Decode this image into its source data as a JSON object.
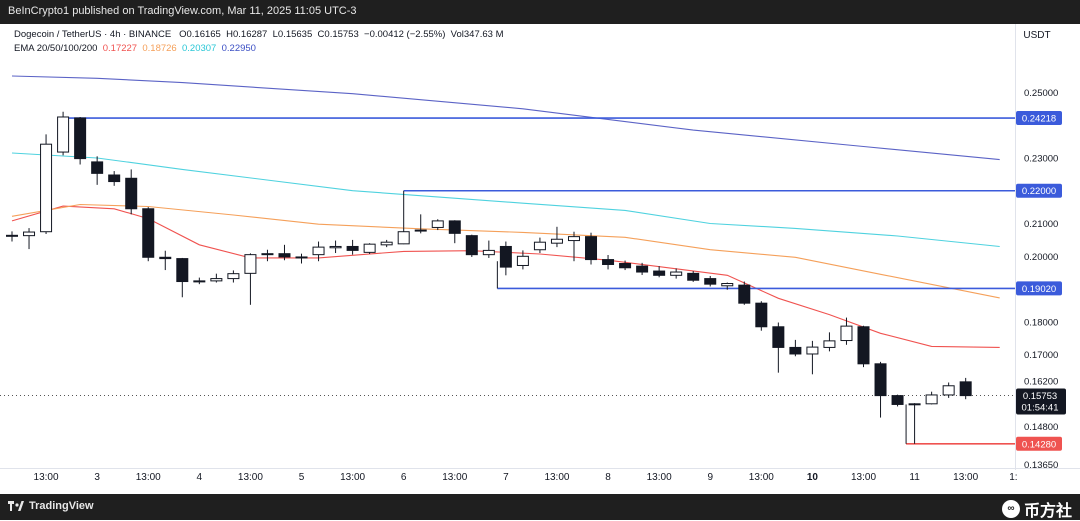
{
  "header": {
    "publish_line": "BeInCrypto1 published on TradingView.com, Mar 11, 2025 11:05 UTC-3"
  },
  "legend": {
    "symbol": "Dogecoin / TetherUS · 4h · BINANCE",
    "o_label": "O",
    "o_value": "0.16165",
    "h_label": "H",
    "h_value": "0.16287",
    "l_label": "L",
    "l_value": "0.15635",
    "c_label": "C",
    "c_value": "0.15753",
    "change": "−0.00412 (−2.55%)",
    "vol_label": "Vol",
    "vol_value": "347.63 M",
    "ema_label": "EMA 20/50/100/200",
    "ema_values": [
      "0.17227",
      "0.18726",
      "0.20307",
      "0.22950"
    ]
  },
  "footer": {
    "brand": "TradingView",
    "watermark": "币方社"
  },
  "chart_data": {
    "type": "candlestick",
    "currency": "USDT",
    "ylim": [
      0.1345,
      0.2608
    ],
    "y_ticks": [
      {
        "v": 0.25,
        "label": "0.25000"
      },
      {
        "v": 0.23,
        "label": "0.23000"
      },
      {
        "v": 0.21,
        "label": "0.21000"
      },
      {
        "v": 0.2,
        "label": "0.20000"
      },
      {
        "v": 0.18,
        "label": "0.18000"
      },
      {
        "v": 0.17,
        "label": "0.17000"
      },
      {
        "v": 0.162,
        "label": "0.16200"
      },
      {
        "v": 0.148,
        "label": "0.14800"
      },
      {
        "v": 0.1365,
        "label": "0.13650"
      }
    ],
    "x_ticks": [
      {
        "i": 2,
        "label": "13:00"
      },
      {
        "i": 5,
        "label": "3"
      },
      {
        "i": 8,
        "label": "13:00"
      },
      {
        "i": 11,
        "label": "4"
      },
      {
        "i": 14,
        "label": "13:00"
      },
      {
        "i": 17,
        "label": "5"
      },
      {
        "i": 20,
        "label": "13:00"
      },
      {
        "i": 23,
        "label": "6"
      },
      {
        "i": 26,
        "label": "13:00"
      },
      {
        "i": 29,
        "label": "7"
      },
      {
        "i": 32,
        "label": "13:00"
      },
      {
        "i": 35,
        "label": "8"
      },
      {
        "i": 38,
        "label": "13:00"
      },
      {
        "i": 41,
        "label": "9"
      },
      {
        "i": 44,
        "label": "13:00"
      },
      {
        "i": 47,
        "label": "10",
        "bold": true
      },
      {
        "i": 50,
        "label": "13:00"
      },
      {
        "i": 53,
        "label": "11"
      },
      {
        "i": 56,
        "label": "13:00"
      },
      {
        "i": 58.8,
        "label": "1:"
      }
    ],
    "candles": [
      {
        "o": 0.2064,
        "h": 0.2076,
        "l": 0.2045,
        "c": 0.2062
      },
      {
        "o": 0.2063,
        "h": 0.2086,
        "l": 0.2022,
        "c": 0.2074
      },
      {
        "o": 0.2075,
        "h": 0.2372,
        "l": 0.2068,
        "c": 0.2342
      },
      {
        "o": 0.2318,
        "h": 0.2441,
        "l": 0.2308,
        "c": 0.2425
      },
      {
        "o": 0.2422,
        "h": 0.2425,
        "l": 0.228,
        "c": 0.2298
      },
      {
        "o": 0.2288,
        "h": 0.2305,
        "l": 0.2218,
        "c": 0.2253
      },
      {
        "o": 0.2248,
        "h": 0.226,
        "l": 0.2215,
        "c": 0.2228
      },
      {
        "o": 0.2238,
        "h": 0.2265,
        "l": 0.2128,
        "c": 0.2145
      },
      {
        "o": 0.2145,
        "h": 0.215,
        "l": 0.1985,
        "c": 0.1997
      },
      {
        "o": 0.1997,
        "h": 0.2017,
        "l": 0.1958,
        "c": 0.1993
      },
      {
        "o": 0.1993,
        "h": 0.1995,
        "l": 0.1875,
        "c": 0.1923
      },
      {
        "o": 0.1922,
        "h": 0.1935,
        "l": 0.1915,
        "c": 0.1925
      },
      {
        "o": 0.1925,
        "h": 0.1947,
        "l": 0.192,
        "c": 0.1932
      },
      {
        "o": 0.1932,
        "h": 0.1957,
        "l": 0.192,
        "c": 0.1947
      },
      {
        "o": 0.1948,
        "h": 0.2009,
        "l": 0.1852,
        "c": 0.2005
      },
      {
        "o": 0.2008,
        "h": 0.202,
        "l": 0.1985,
        "c": 0.2007
      },
      {
        "o": 0.2008,
        "h": 0.2035,
        "l": 0.1988,
        "c": 0.1998
      },
      {
        "o": 0.1998,
        "h": 0.2008,
        "l": 0.1978,
        "c": 0.1995
      },
      {
        "o": 0.2005,
        "h": 0.2045,
        "l": 0.1985,
        "c": 0.2028
      },
      {
        "o": 0.2026,
        "h": 0.2048,
        "l": 0.201,
        "c": 0.203
      },
      {
        "o": 0.203,
        "h": 0.205,
        "l": 0.2005,
        "c": 0.2018
      },
      {
        "o": 0.2012,
        "h": 0.204,
        "l": 0.2007,
        "c": 0.2037
      },
      {
        "o": 0.2035,
        "h": 0.205,
        "l": 0.2028,
        "c": 0.2043
      },
      {
        "o": 0.2038,
        "h": 0.2087,
        "l": 0.2037,
        "c": 0.2075
      },
      {
        "o": 0.2077,
        "h": 0.2128,
        "l": 0.207,
        "c": 0.208
      },
      {
        "o": 0.2088,
        "h": 0.2113,
        "l": 0.208,
        "c": 0.2108
      },
      {
        "o": 0.2108,
        "h": 0.211,
        "l": 0.204,
        "c": 0.207
      },
      {
        "o": 0.2063,
        "h": 0.2066,
        "l": 0.1998,
        "c": 0.2005
      },
      {
        "o": 0.2005,
        "h": 0.2048,
        "l": 0.1995,
        "c": 0.2018
      },
      {
        "o": 0.203,
        "h": 0.2045,
        "l": 0.1942,
        "c": 0.1967
      },
      {
        "o": 0.1972,
        "h": 0.2018,
        "l": 0.196,
        "c": 0.2
      },
      {
        "o": 0.202,
        "h": 0.2057,
        "l": 0.201,
        "c": 0.2043
      },
      {
        "o": 0.204,
        "h": 0.209,
        "l": 0.2028,
        "c": 0.2052
      },
      {
        "o": 0.2048,
        "h": 0.2075,
        "l": 0.1985,
        "c": 0.206
      },
      {
        "o": 0.206,
        "h": 0.2072,
        "l": 0.1975,
        "c": 0.199
      },
      {
        "o": 0.199,
        "h": 0.2004,
        "l": 0.196,
        "c": 0.1975
      },
      {
        "o": 0.1978,
        "h": 0.1987,
        "l": 0.1958,
        "c": 0.1965
      },
      {
        "o": 0.197,
        "h": 0.198,
        "l": 0.1943,
        "c": 0.1952
      },
      {
        "o": 0.1955,
        "h": 0.197,
        "l": 0.1936,
        "c": 0.1942
      },
      {
        "o": 0.1942,
        "h": 0.1963,
        "l": 0.1932,
        "c": 0.1952
      },
      {
        "o": 0.1948,
        "h": 0.1955,
        "l": 0.1922,
        "c": 0.1927
      },
      {
        "o": 0.1932,
        "h": 0.194,
        "l": 0.1908,
        "c": 0.1915
      },
      {
        "o": 0.191,
        "h": 0.192,
        "l": 0.1898,
        "c": 0.1917
      },
      {
        "o": 0.1912,
        "h": 0.1923,
        "l": 0.1852,
        "c": 0.1857
      },
      {
        "o": 0.1857,
        "h": 0.1863,
        "l": 0.1773,
        "c": 0.1785
      },
      {
        "o": 0.1785,
        "h": 0.1798,
        "l": 0.1645,
        "c": 0.1722
      },
      {
        "o": 0.1722,
        "h": 0.1745,
        "l": 0.1695,
        "c": 0.1702
      },
      {
        "o": 0.1702,
        "h": 0.1742,
        "l": 0.164,
        "c": 0.1723
      },
      {
        "o": 0.1722,
        "h": 0.1768,
        "l": 0.171,
        "c": 0.1742
      },
      {
        "o": 0.1743,
        "h": 0.1813,
        "l": 0.173,
        "c": 0.1787
      },
      {
        "o": 0.1785,
        "h": 0.1788,
        "l": 0.1662,
        "c": 0.1672
      },
      {
        "o": 0.1672,
        "h": 0.1678,
        "l": 0.1508,
        "c": 0.1575
      },
      {
        "o": 0.1575,
        "h": 0.1578,
        "l": 0.1542,
        "c": 0.1548
      },
      {
        "o": 0.1548,
        "h": 0.1552,
        "l": 0.1428,
        "c": 0.155
      },
      {
        "o": 0.155,
        "h": 0.1587,
        "l": 0.1548,
        "c": 0.1577
      },
      {
        "o": 0.1577,
        "h": 0.1615,
        "l": 0.1568,
        "c": 0.1605
      },
      {
        "o": 0.1617,
        "h": 0.1629,
        "l": 0.1564,
        "c": 0.1575
      }
    ],
    "ema": [
      {
        "name": "EMA 20",
        "color": "#f05350",
        "points": [
          [
            0,
            0.2108
          ],
          [
            3,
            0.2153
          ],
          [
            6,
            0.2145
          ],
          [
            8,
            0.2115
          ],
          [
            11,
            0.2035
          ],
          [
            14,
            0.1995
          ],
          [
            18,
            0.1995
          ],
          [
            23,
            0.2015
          ],
          [
            27,
            0.2017
          ],
          [
            31,
            0.2007
          ],
          [
            35,
            0.1988
          ],
          [
            39,
            0.1962
          ],
          [
            42,
            0.1942
          ],
          [
            45,
            0.1872
          ],
          [
            48,
            0.1822
          ],
          [
            51,
            0.1765
          ],
          [
            54,
            0.1725
          ],
          [
            58,
            0.1722
          ]
        ]
      },
      {
        "name": "EMA 50",
        "color": "#f5a05a",
        "points": [
          [
            0,
            0.2122
          ],
          [
            4,
            0.2158
          ],
          [
            8,
            0.2152
          ],
          [
            13,
            0.2126
          ],
          [
            18,
            0.2098
          ],
          [
            24,
            0.2084
          ],
          [
            30,
            0.2073
          ],
          [
            36,
            0.2058
          ],
          [
            41,
            0.202
          ],
          [
            46,
            0.1997
          ],
          [
            51,
            0.1945
          ],
          [
            58,
            0.1873
          ]
        ]
      },
      {
        "name": "EMA 100",
        "color": "#4fd2df",
        "points": [
          [
            0,
            0.2315
          ],
          [
            5,
            0.23
          ],
          [
            10,
            0.2265
          ],
          [
            20,
            0.22
          ],
          [
            30,
            0.2162
          ],
          [
            36,
            0.214
          ],
          [
            41,
            0.21
          ],
          [
            46,
            0.2085
          ],
          [
            52,
            0.2062
          ],
          [
            58,
            0.203
          ]
        ]
      },
      {
        "name": "EMA 200",
        "color": "#5b63c6",
        "points": [
          [
            0,
            0.255
          ],
          [
            5,
            0.2543
          ],
          [
            10,
            0.253
          ],
          [
            20,
            0.2496
          ],
          [
            30,
            0.245
          ],
          [
            40,
            0.2385
          ],
          [
            50,
            0.2335
          ],
          [
            58,
            0.2295
          ]
        ]
      }
    ],
    "levels": [
      {
        "price": 0.24218,
        "label": "0.24218",
        "color": "#3b5bdb",
        "from": 3
      },
      {
        "price": 0.22,
        "label": "0.22000",
        "color": "#3b5bdb",
        "from": 23
      },
      {
        "price": 0.1902,
        "label": "0.19020",
        "color": "#3b5bdb",
        "from": 28.5
      },
      {
        "price": 0.1428,
        "label": "0.14280",
        "color": "#ef5350",
        "from": 52.5
      }
    ],
    "last_price": {
      "value": 0.15753,
      "label": "0.15753",
      "countdown": "01:54:41"
    }
  }
}
